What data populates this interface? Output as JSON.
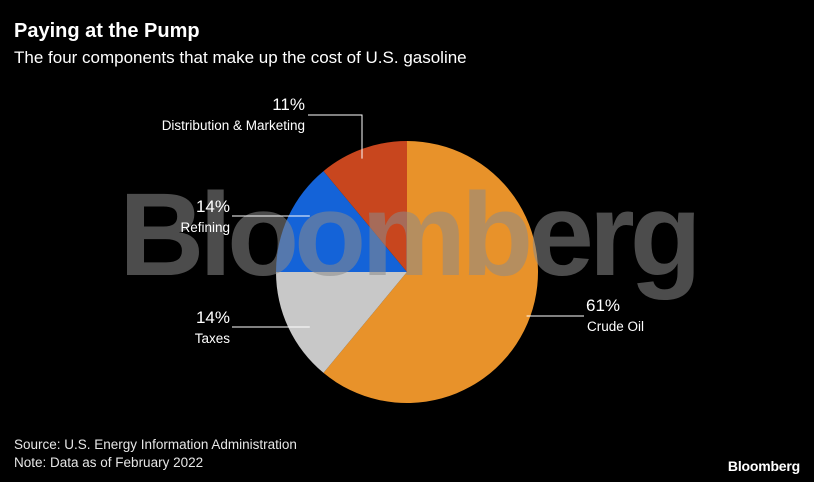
{
  "header": {
    "title": "Paying at the Pump",
    "subtitle": "The four components that make up the cost of U.S. gasoline"
  },
  "chart_data": {
    "type": "pie",
    "title": "Paying at the Pump",
    "subtitle": "The four components that make up the cost of U.S. gasoline",
    "slices": [
      {
        "label": "Crude Oil",
        "value": 61,
        "value_label": "61%",
        "color": "#e8922a"
      },
      {
        "label": "Taxes",
        "value": 14,
        "value_label": "14%",
        "color": "#c8c8c8"
      },
      {
        "label": "Refining",
        "value": 14,
        "value_label": "14%",
        "color": "#1463d8"
      },
      {
        "label": "Distribution & Marketing",
        "value": 11,
        "value_label": "11%",
        "color": "#c8461e"
      }
    ],
    "slice_order": "clockwise from 12 o'clock",
    "watermark": "Bloomberg"
  },
  "footer": {
    "source": "Source: U.S. Energy Information Administration",
    "note": "Note: Data as of February 2022",
    "logo": "Bloomberg"
  },
  "colors": {
    "background": "#000000",
    "text": "#ffffff"
  }
}
